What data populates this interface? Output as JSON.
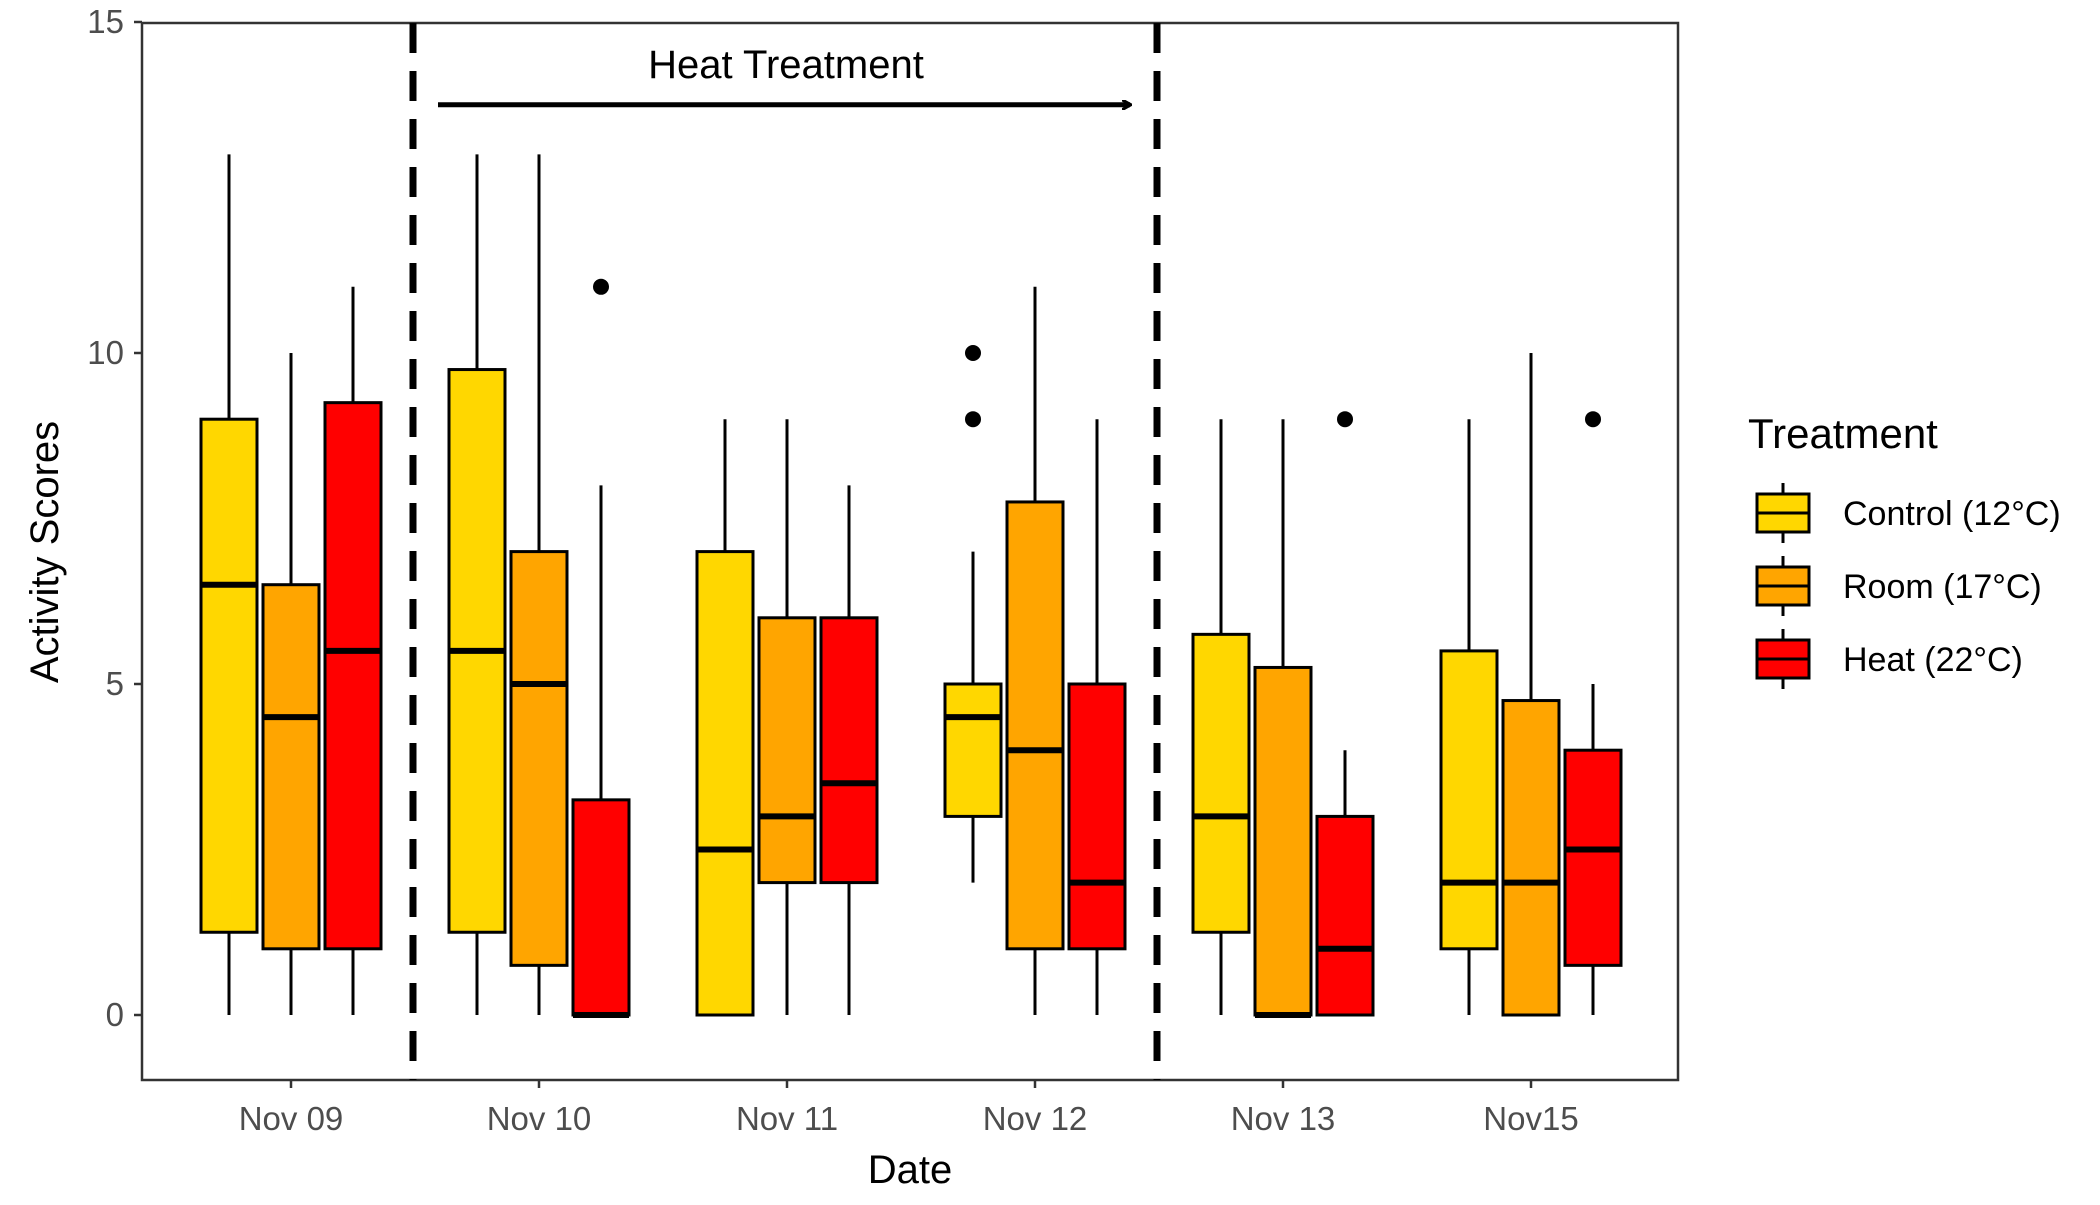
{
  "chart_data": {
    "type": "boxplot",
    "xlabel": "Date",
    "ylabel": "Activity Scores",
    "ylim": [
      -1,
      15
    ],
    "yticks": [
      0,
      5,
      10,
      15
    ],
    "categories": [
      "Nov 09",
      "Nov 10",
      "Nov 11",
      "Nov 12",
      "Nov 13",
      "Nov15"
    ],
    "legend": {
      "title": "Treatment",
      "position": "right",
      "entries": [
        "Control (12°C)",
        "Room (17°C)",
        "Heat (22°C)"
      ]
    },
    "series": [
      {
        "name": "Control (12°C)",
        "color": "#FFD700",
        "boxes": [
          {
            "min": 0,
            "q1": 1.25,
            "median": 6.5,
            "q3": 9,
            "max": 13,
            "outliers": []
          },
          {
            "min": 0,
            "q1": 1.25,
            "median": 5.5,
            "q3": 9.75,
            "max": 13,
            "outliers": []
          },
          {
            "min": 0,
            "q1": 0,
            "median": 2.5,
            "q3": 7,
            "max": 9,
            "outliers": []
          },
          {
            "min": 2,
            "q1": 3,
            "median": 4.5,
            "q3": 5,
            "max": 7,
            "outliers": [
              9,
              10
            ]
          },
          {
            "min": 0,
            "q1": 1.25,
            "median": 3,
            "q3": 5.75,
            "max": 9,
            "outliers": []
          },
          {
            "min": 0,
            "q1": 1,
            "median": 2,
            "q3": 5.5,
            "max": 9,
            "outliers": []
          }
        ]
      },
      {
        "name": "Room (17°C)",
        "color": "#FFA500",
        "boxes": [
          {
            "min": 0,
            "q1": 1,
            "median": 4.5,
            "q3": 6.5,
            "max": 10,
            "outliers": []
          },
          {
            "min": 0,
            "q1": 0.75,
            "median": 5,
            "q3": 7,
            "max": 13,
            "outliers": []
          },
          {
            "min": 0,
            "q1": 2,
            "median": 3,
            "q3": 6,
            "max": 9,
            "outliers": []
          },
          {
            "min": 0,
            "q1": 1,
            "median": 4,
            "q3": 7.75,
            "max": 11,
            "outliers": []
          },
          {
            "min": 0,
            "q1": 0,
            "median": 0,
            "q3": 5.25,
            "max": 9,
            "outliers": []
          },
          {
            "min": 0,
            "q1": 0,
            "median": 2,
            "q3": 4.75,
            "max": 10,
            "outliers": []
          }
        ]
      },
      {
        "name": "Heat (22°C)",
        "color": "#FF0000",
        "boxes": [
          {
            "min": 0,
            "q1": 1,
            "median": 5.5,
            "q3": 9.25,
            "max": 11,
            "outliers": []
          },
          {
            "min": 0,
            "q1": 0,
            "median": 0,
            "q3": 3.25,
            "max": 8,
            "outliers": [
              11
            ]
          },
          {
            "min": 0,
            "q1": 2,
            "median": 3.5,
            "q3": 6,
            "max": 8,
            "outliers": []
          },
          {
            "min": 0,
            "q1": 1,
            "median": 2,
            "q3": 5,
            "max": 9,
            "outliers": []
          },
          {
            "min": 0,
            "q1": 0,
            "median": 1,
            "q3": 3,
            "max": 4,
            "outliers": [
              9
            ]
          },
          {
            "min": 0,
            "q1": 0.75,
            "median": 2.5,
            "q3": 4,
            "max": 5,
            "outliers": [
              9
            ]
          }
        ]
      }
    ],
    "annotations": {
      "text": "Heat Treatment",
      "arrow": {
        "y": 13.75,
        "direction": "right"
      }
    }
  }
}
